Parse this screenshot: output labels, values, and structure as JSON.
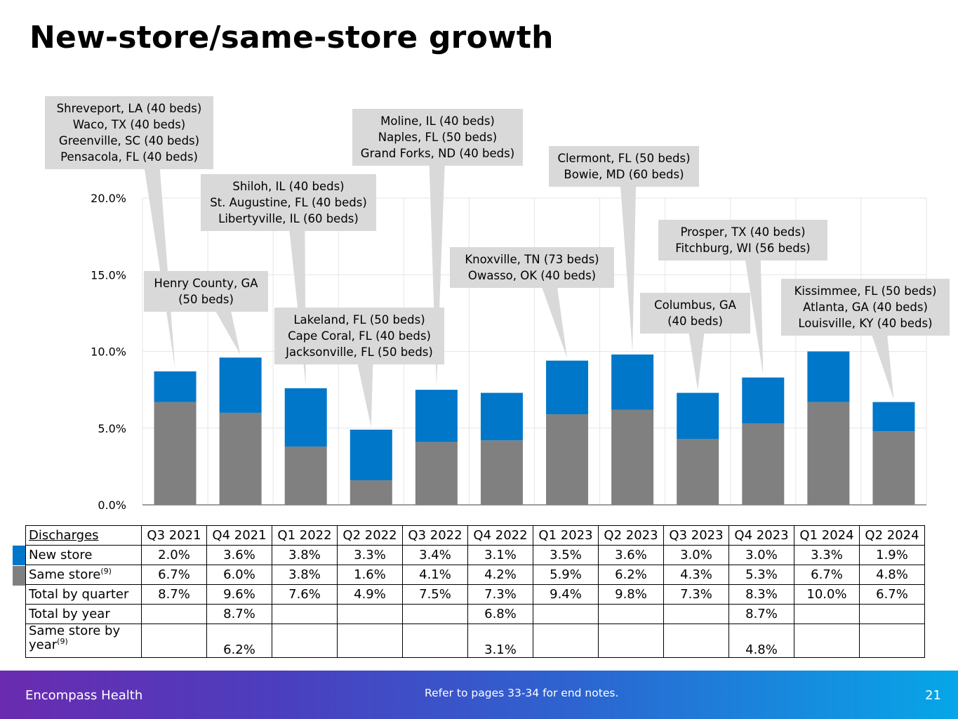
{
  "slide": {
    "title": "New-store/same-store growth",
    "page_number": "21"
  },
  "footer": {
    "brand": "Encompass Health",
    "note": "Refer to pages 33-34 for end notes."
  },
  "colors": {
    "new_store": "#0077c8",
    "same_store": "#808080",
    "callout_bg": "#d9d9d9",
    "grid": "#e6e6e6"
  },
  "chart_data": {
    "type": "bar",
    "stacked": true,
    "categories": [
      "Q3 2021",
      "Q4 2021",
      "Q1 2022",
      "Q2 2022",
      "Q3 2022",
      "Q4 2022",
      "Q1 2023",
      "Q2 2023",
      "Q3 2023",
      "Q4 2023",
      "Q1 2024",
      "Q2 2024"
    ],
    "series": [
      {
        "name": "Same store",
        "values": [
          6.7,
          6.0,
          3.8,
          1.6,
          4.1,
          4.2,
          5.9,
          6.2,
          4.3,
          5.3,
          6.7,
          4.8
        ]
      },
      {
        "name": "New store",
        "values": [
          2.0,
          3.6,
          3.8,
          3.3,
          3.4,
          3.1,
          3.5,
          3.6,
          3.0,
          3.0,
          3.3,
          1.9
        ]
      }
    ],
    "totals": [
      8.7,
      9.6,
      7.6,
      4.9,
      7.5,
      7.3,
      9.4,
      9.8,
      7.3,
      8.3,
      10.0,
      6.7
    ],
    "ylim": [
      0,
      20
    ],
    "yticks": [
      0,
      5,
      10,
      15,
      20
    ],
    "ytick_labels": [
      "0.0%",
      "5.0%",
      "10.0%",
      "15.0%",
      "20.0%"
    ],
    "grid": true,
    "annotations": [
      {
        "category": "Q3 2021",
        "lines": [
          "Shreveport, LA (40 beds)",
          "Waco, TX (40 beds)",
          "Greenville, SC (40 beds)",
          "Pensacola, FL (40 beds)"
        ]
      },
      {
        "category": "Q4 2021",
        "lines": [
          "Henry County, GA",
          "(50 beds)"
        ]
      },
      {
        "category": "Q1 2022",
        "lines": [
          "Shiloh, IL (40 beds)",
          "St. Augustine, FL (40 beds)",
          "Libertyville, IL (60 beds)"
        ]
      },
      {
        "category": "Q2 2022",
        "lines": [
          "Lakeland, FL (50 beds)",
          "Cape Coral, FL (40 beds)",
          "Jacksonville, FL (50 beds)"
        ]
      },
      {
        "category": "Q3 2022",
        "lines": [
          "Moline, IL (40 beds)",
          "Naples, FL (50 beds)",
          "Grand Forks, ND (40 beds)"
        ]
      },
      {
        "category": "Q1 2023",
        "lines": [
          "Knoxville, TN (73 beds)",
          "Owasso, OK (40 beds)"
        ]
      },
      {
        "category": "Q2 2023",
        "lines": [
          "Clermont, FL (50 beds)",
          "Bowie, MD (60 beds)"
        ]
      },
      {
        "category": "Q3 2023",
        "lines": [
          "Columbus, GA",
          "(40 beds)"
        ]
      },
      {
        "category": "Q4 2023",
        "lines": [
          "Prosper, TX (40 beds)",
          "Fitchburg, WI (56 beds)"
        ]
      },
      {
        "category": "Q2 2024",
        "lines": [
          "Kissimmee, FL (50 beds)",
          "Atlanta, GA (40 beds)",
          "Louisville, KY (40 beds)"
        ]
      }
    ]
  },
  "table": {
    "header_label": "Discharges",
    "quarters": [
      "Q3 2021",
      "Q4 2021",
      "Q1 2022",
      "Q2 2022",
      "Q3 2022",
      "Q4 2022",
      "Q1 2023",
      "Q2 2023",
      "Q3 2023",
      "Q4 2023",
      "Q1 2024",
      "Q2 2024"
    ],
    "rows": [
      {
        "label": "New store",
        "sup": "",
        "cells": [
          "2.0%",
          "3.6%",
          "3.8%",
          "3.3%",
          "3.4%",
          "3.1%",
          "3.5%",
          "3.6%",
          "3.0%",
          "3.0%",
          "3.3%",
          "1.9%"
        ]
      },
      {
        "label": "Same store",
        "sup": "(9)",
        "cells": [
          "6.7%",
          "6.0%",
          "3.8%",
          "1.6%",
          "4.1%",
          "4.2%",
          "5.9%",
          "6.2%",
          "4.3%",
          "5.3%",
          "6.7%",
          "4.8%"
        ]
      },
      {
        "label": "Total by quarter",
        "sup": "",
        "cells": [
          "8.7%",
          "9.6%",
          "7.6%",
          "4.9%",
          "7.5%",
          "7.3%",
          "9.4%",
          "9.8%",
          "7.3%",
          "8.3%",
          "10.0%",
          "6.7%"
        ]
      },
      {
        "label": "Total by year",
        "sup": "",
        "cells": [
          "",
          "8.7%",
          "",
          "",
          "",
          "6.8%",
          "",
          "",
          "",
          "8.7%",
          "",
          ""
        ]
      },
      {
        "label": "Same store by year",
        "sup": "(9)",
        "cells": [
          "",
          "6.2%",
          "",
          "",
          "",
          "3.1%",
          "",
          "",
          "",
          "4.8%",
          "",
          ""
        ]
      }
    ]
  }
}
